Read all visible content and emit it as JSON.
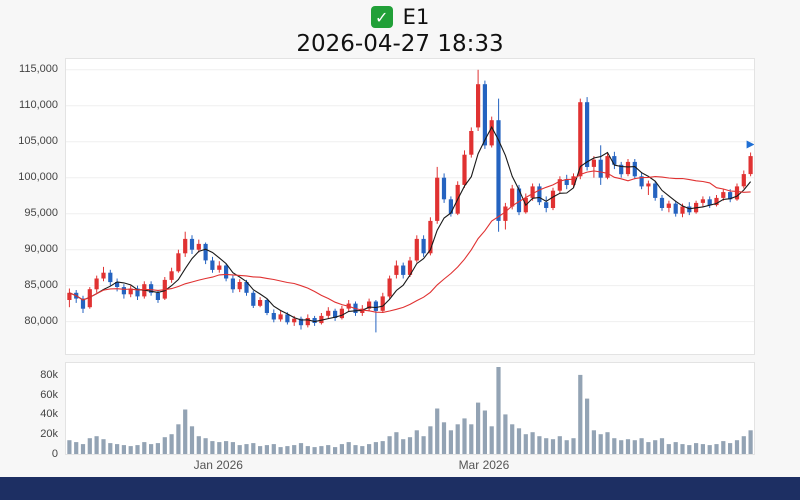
{
  "header": {
    "check_glyph": "✓",
    "title": "E1",
    "subtitle": "2026-04-27 18:33"
  },
  "chart_data": {
    "type": "candlestick",
    "title": "E1",
    "subtitle": "2026-04-27 18:33",
    "legend_position": "none",
    "grid": "faint-horizontal",
    "y_axis": {
      "labels": [
        "115,000",
        "110,000",
        "105,000",
        "100,000",
        "95,000",
        "90,000",
        "85,000",
        "80,000"
      ],
      "values": [
        115000,
        110000,
        105000,
        100000,
        95000,
        90000,
        85000,
        80000
      ],
      "min": 75500,
      "max": 116500
    },
    "volume_axis": {
      "labels": [
        "80k",
        "60k",
        "40k",
        "20k",
        "0"
      ],
      "values": [
        80000,
        60000,
        40000,
        20000,
        0
      ],
      "max": 92000
    },
    "x_axis": {
      "ticks": [
        {
          "index": 22,
          "label": "Jan 2026"
        },
        {
          "index": 61,
          "label": "Mar 2026"
        }
      ]
    },
    "moving_averages": [
      {
        "name": "ma-short",
        "window": 5,
        "color": "#1a1a1a"
      },
      {
        "name": "ma-long",
        "window": 20,
        "color": "#e03232"
      }
    ],
    "last_price_marker": {
      "index": 100,
      "value": 103000,
      "shape": "triangle-right",
      "color": "#1f6fd4"
    },
    "colors": {
      "up": "#e03232",
      "down": "#2563c0",
      "volume_bar": "#93a3b4",
      "grid": "#efefef",
      "plot_border": "#e3e3e3",
      "page_bg": "#f7f7f7",
      "footer": "#1d2f63",
      "checkbox_green": "#21a038"
    },
    "candle_format": [
      "open",
      "high",
      "low",
      "close"
    ],
    "candles": [
      [
        83000,
        84600,
        82000,
        84000
      ],
      [
        84000,
        84400,
        82600,
        83200
      ],
      [
        83200,
        83600,
        81200,
        81800
      ],
      [
        82000,
        84800,
        81800,
        84500
      ],
      [
        84500,
        86400,
        84000,
        86000
      ],
      [
        86000,
        87600,
        85600,
        86800
      ],
      [
        86800,
        87200,
        85000,
        85500
      ],
      [
        85500,
        86000,
        84200,
        84800
      ],
      [
        84800,
        85200,
        83200,
        83800
      ],
      [
        83800,
        85000,
        83400,
        84600
      ],
      [
        84600,
        85000,
        83000,
        83500
      ],
      [
        83500,
        85600,
        83200,
        85200
      ],
      [
        85200,
        85600,
        83600,
        84000
      ],
      [
        84000,
        84400,
        82600,
        83000
      ],
      [
        83200,
        86200,
        83000,
        85800
      ],
      [
        85800,
        87500,
        85400,
        87000
      ],
      [
        87000,
        90000,
        86800,
        89500
      ],
      [
        89500,
        92500,
        89000,
        91500
      ],
      [
        91500,
        92000,
        89400,
        90000
      ],
      [
        90000,
        91400,
        89600,
        90800
      ],
      [
        90800,
        91000,
        88000,
        88500
      ],
      [
        88500,
        89000,
        86800,
        87200
      ],
      [
        87200,
        88400,
        86800,
        87800
      ],
      [
        87800,
        88000,
        85600,
        86000
      ],
      [
        86000,
        86400,
        84000,
        84500
      ],
      [
        84500,
        85900,
        84100,
        85500
      ],
      [
        85500,
        85800,
        83600,
        84000
      ],
      [
        84000,
        84300,
        81900,
        82200
      ],
      [
        82200,
        83400,
        82000,
        83000
      ],
      [
        83000,
        83200,
        80900,
        81200
      ],
      [
        81200,
        81700,
        79900,
        80300
      ],
      [
        80300,
        81500,
        80000,
        81000
      ],
      [
        81000,
        81300,
        79600,
        79900
      ],
      [
        79900,
        80800,
        79400,
        80400
      ],
      [
        80400,
        80700,
        78900,
        79500
      ],
      [
        79500,
        81000,
        79200,
        80500
      ],
      [
        80500,
        80800,
        79400,
        79800
      ],
      [
        79800,
        81200,
        79600,
        80800
      ],
      [
        80800,
        82000,
        80400,
        81500
      ],
      [
        81500,
        81800,
        80100,
        80500
      ],
      [
        80500,
        82200,
        80300,
        81800
      ],
      [
        81800,
        83000,
        81400,
        82500
      ],
      [
        82500,
        82800,
        80800,
        81200
      ],
      [
        81200,
        82300,
        80800,
        81800
      ],
      [
        81800,
        83200,
        81400,
        82800
      ],
      [
        82800,
        83000,
        78500,
        81500
      ],
      [
        81500,
        84000,
        81200,
        83500
      ],
      [
        83500,
        86400,
        83200,
        86000
      ],
      [
        86500,
        88500,
        86000,
        87800
      ],
      [
        87800,
        88200,
        86000,
        86500
      ],
      [
        86500,
        89000,
        86200,
        88500
      ],
      [
        88500,
        92000,
        88200,
        91500
      ],
      [
        91500,
        92000,
        89000,
        89500
      ],
      [
        89500,
        94500,
        89200,
        94000
      ],
      [
        94000,
        101500,
        93600,
        100000
      ],
      [
        100000,
        100600,
        96500,
        97000
      ],
      [
        97000,
        97400,
        94600,
        95000
      ],
      [
        95000,
        99500,
        94800,
        99000
      ],
      [
        99000,
        103800,
        98600,
        103200
      ],
      [
        103200,
        107000,
        102800,
        106500
      ],
      [
        107000,
        115000,
        106500,
        113000
      ],
      [
        113000,
        113500,
        104000,
        104500
      ],
      [
        104500,
        108500,
        104200,
        108000
      ],
      [
        108000,
        111000,
        92500,
        94000
      ],
      [
        94000,
        96500,
        92800,
        96000
      ],
      [
        96000,
        99000,
        95600,
        98500
      ],
      [
        98500,
        99000,
        94800,
        95200
      ],
      [
        95200,
        97800,
        95000,
        97200
      ],
      [
        97200,
        99200,
        96800,
        98800
      ],
      [
        98800,
        99200,
        96200,
        96600
      ],
      [
        96600,
        97400,
        95200,
        95800
      ],
      [
        95800,
        98600,
        95500,
        98200
      ],
      [
        98200,
        100200,
        97800,
        99800
      ],
      [
        99800,
        100400,
        98400,
        99000
      ],
      [
        99000,
        100600,
        98600,
        100200
      ],
      [
        100200,
        111000,
        99800,
        110500
      ],
      [
        110500,
        111200,
        101000,
        101500
      ],
      [
        101500,
        103000,
        100000,
        102500
      ],
      [
        102500,
        104500,
        99000,
        100000
      ],
      [
        100000,
        103400,
        99800,
        103000
      ],
      [
        103000,
        103600,
        101200,
        101800
      ],
      [
        101800,
        102200,
        100000,
        100500
      ],
      [
        100500,
        102600,
        100200,
        102200
      ],
      [
        102200,
        102600,
        99800,
        100200
      ],
      [
        100200,
        100800,
        98400,
        98800
      ],
      [
        98800,
        99600,
        97600,
        99200
      ],
      [
        99200,
        99500,
        96800,
        97200
      ],
      [
        97200,
        97600,
        95400,
        95800
      ],
      [
        95800,
        96800,
        95200,
        96400
      ],
      [
        96400,
        96800,
        94600,
        95000
      ],
      [
        95000,
        96400,
        94500,
        96000
      ],
      [
        96000,
        96600,
        94800,
        95200
      ],
      [
        95200,
        96800,
        95000,
        96500
      ],
      [
        96500,
        97400,
        96000,
        97000
      ],
      [
        97000,
        97400,
        95800,
        96200
      ],
      [
        96200,
        97600,
        96000,
        97200
      ],
      [
        97200,
        98400,
        96800,
        98000
      ],
      [
        98000,
        98400,
        96600,
        97000
      ],
      [
        97000,
        99200,
        96800,
        98800
      ],
      [
        98800,
        101000,
        98500,
        100500
      ],
      [
        100500,
        103500,
        100200,
        103000
      ]
    ],
    "volumes": [
      14000,
      12000,
      10000,
      16000,
      18000,
      15000,
      11000,
      10000,
      9000,
      8000,
      9000,
      12000,
      10000,
      11000,
      17000,
      20000,
      30000,
      45000,
      28000,
      18000,
      16000,
      13000,
      12000,
      13000,
      12000,
      9000,
      10000,
      11000,
      8000,
      9000,
      10000,
      7000,
      8000,
      9000,
      11000,
      8000,
      7000,
      8000,
      9000,
      7000,
      10000,
      12000,
      9000,
      8000,
      10000,
      12000,
      13000,
      18000,
      22000,
      15000,
      17000,
      24000,
      18000,
      28000,
      46000,
      32000,
      24000,
      30000,
      36000,
      30000,
      52000,
      44000,
      28000,
      88000,
      40000,
      30000,
      26000,
      20000,
      22000,
      18000,
      16000,
      15000,
      18000,
      14000,
      16000,
      80000,
      56000,
      24000,
      20000,
      22000,
      16000,
      14000,
      15000,
      14000,
      16000,
      12000,
      14000,
      16000,
      10000,
      12000,
      10000,
      9000,
      11000,
      10000,
      9000,
      10000,
      13000,
      11000,
      14000,
      18000,
      24000
    ]
  }
}
